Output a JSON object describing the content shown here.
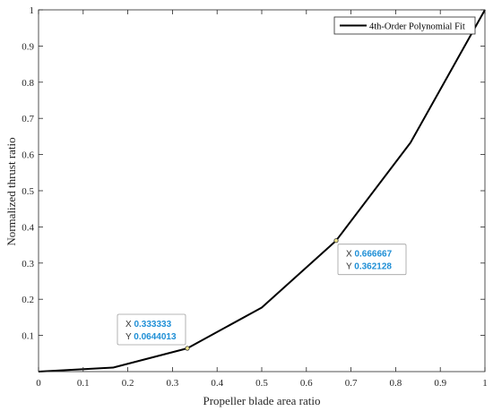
{
  "chart_data": {
    "type": "line",
    "xlabel": "Propeller blade area ratio",
    "ylabel": "Normalized thrust ratio",
    "xlim": [
      0,
      1
    ],
    "ylim": [
      0,
      1
    ],
    "x_ticks": [
      "0",
      "0.1",
      "0.2",
      "0.3",
      "0.4",
      "0.5",
      "0.6",
      "0.7",
      "0.8",
      "0.9",
      "1"
    ],
    "y_ticks": [
      "0.1",
      "0.2",
      "0.3",
      "0.4",
      "0.5",
      "0.6",
      "0.7",
      "0.8",
      "0.9",
      "1"
    ],
    "grid": false,
    "legend_position": "top-right",
    "series": [
      {
        "name": "4th-Order Polynomial Fit",
        "color": "#000000",
        "x": [
          0,
          0.166667,
          0.333333,
          0.5,
          0.666667,
          0.833333,
          1
        ],
        "y": [
          0,
          0.011,
          0.0644013,
          0.177,
          0.362128,
          0.633,
          1
        ]
      }
    ],
    "datatips": [
      {
        "x": 0.333333,
        "y": 0.0644013,
        "x_key": "X",
        "y_key": "Y",
        "x_text": "0.333333",
        "y_text": "0.0644013",
        "placement": "upper-left"
      },
      {
        "x": 0.666667,
        "y": 0.362128,
        "x_key": "X",
        "y_key": "Y",
        "x_text": "0.666667",
        "y_text": "0.362128",
        "placement": "lower-right"
      }
    ]
  }
}
